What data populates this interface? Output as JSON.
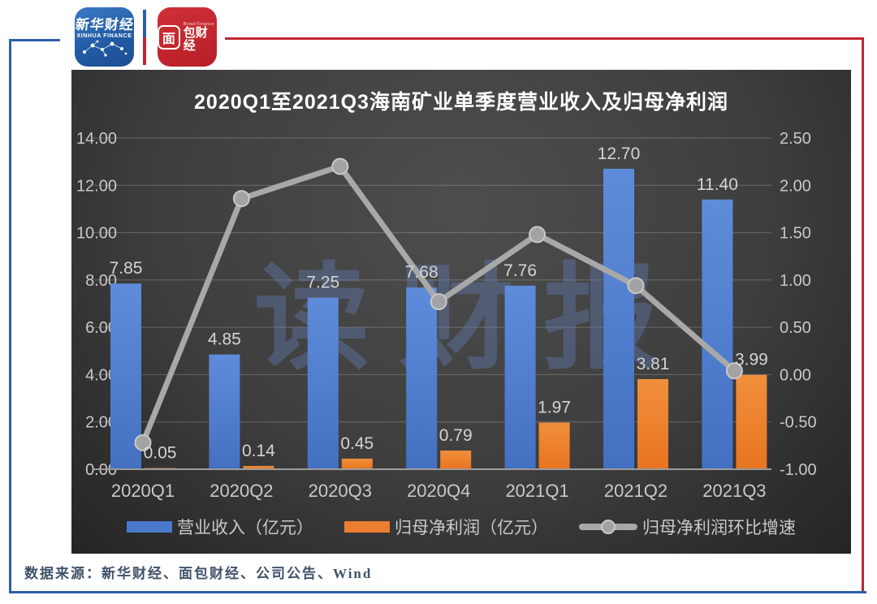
{
  "header": {
    "xinhua_logo": {
      "title_cn": "新华财经",
      "title_en": "XINHUA FINANCE"
    },
    "bread_logo": {
      "boxed_char": "面",
      "rest_chars": "包财经",
      "subtitle_en": "Bread Finance"
    }
  },
  "watermark": "读财报",
  "source_note": "数据来源：新华财经、面包财经、公司公告、Wind",
  "colors": {
    "frame_blue": "#2d5fa7",
    "frame_red": "#c02630",
    "revenue_bar": "#4a79cc",
    "profit_bar": "#ed7d31",
    "growth_line": "#a8a8a8",
    "axis_text": "#c9c9c9",
    "title_text": "#ffffff",
    "watermark_blue": "rgba(99,130,190,0.38)"
  },
  "chart_data": {
    "type": "combo: bar + line, dual axis",
    "title": "2020Q1至2021Q3海南矿业单季度营业收入及归母净利润",
    "categories": [
      "2020Q1",
      "2020Q2",
      "2020Q3",
      "2020Q4",
      "2021Q1",
      "2021Q2",
      "2021Q3"
    ],
    "series": [
      {
        "name": "营业收入（亿元）",
        "type": "bar",
        "axis": "left",
        "color": "#4a79cc",
        "values": [
          7.85,
          4.85,
          7.25,
          7.68,
          7.76,
          12.7,
          11.4
        ],
        "data_labels": [
          "7.85",
          "4.85",
          "7.25",
          "7.68",
          "7.76",
          "12.70",
          "11.40"
        ]
      },
      {
        "name": "归母净利润（亿元）",
        "type": "bar",
        "axis": "left",
        "color": "#ed7d31",
        "values": [
          0.05,
          0.14,
          0.45,
          0.79,
          1.97,
          3.81,
          3.99
        ],
        "data_labels": [
          "0.05",
          "0.14",
          "0.45",
          "0.79",
          "1.97",
          "3.81",
          "3.99"
        ]
      },
      {
        "name": "归母净利润环比增速",
        "type": "line",
        "axis": "right",
        "color": "#a8a8a8",
        "values": [
          -0.72,
          1.86,
          2.2,
          0.77,
          1.48,
          0.94,
          0.04
        ]
      }
    ],
    "left_axis": {
      "min": 0,
      "max": 14,
      "tick_labels": [
        "0.00",
        "2.00",
        "4.00",
        "6.00",
        "8.00",
        "10.00",
        "12.00",
        "14.00"
      ]
    },
    "right_axis": {
      "min": -1.0,
      "max": 2.5,
      "tick_labels": [
        "-1.00",
        "-0.50",
        "0.00",
        "0.50",
        "1.00",
        "1.50",
        "2.00",
        "2.50"
      ]
    },
    "grid": true,
    "legend_position": "bottom"
  }
}
